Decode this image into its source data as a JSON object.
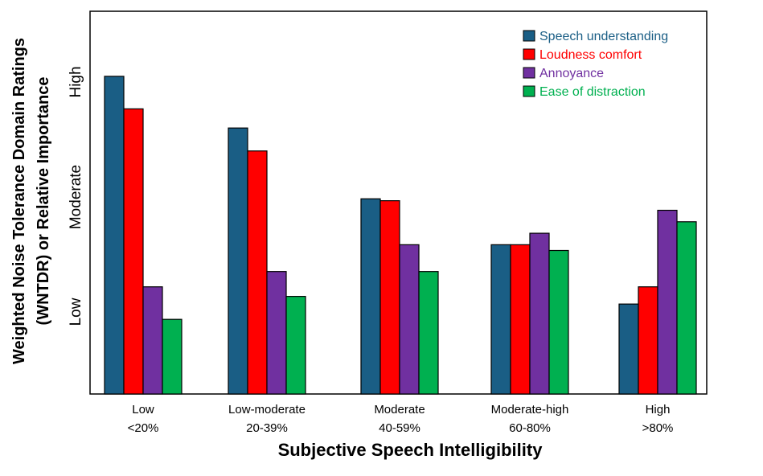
{
  "chart_data": {
    "type": "bar",
    "title": "",
    "xlabel": "Subjective Speech Intelligibility",
    "ylabel_line1": "Weighted Noise Tolerance Domain Ratings",
    "ylabel_line2": "(WNTDR) or  Relative Importance",
    "y_levels": [
      "Low",
      "Moderate",
      "High"
    ],
    "categories": [
      {
        "name": "Low",
        "range": "<20%"
      },
      {
        "name": "Low-moderate",
        "range": "20-39%"
      },
      {
        "name": "Moderate",
        "range": "40-59%"
      },
      {
        "name": "Moderate-high",
        "range": "60-80%"
      },
      {
        "name": "High",
        "range": ">80%"
      }
    ],
    "ylim": [
      0,
      100
    ],
    "series": [
      {
        "name": "Speech understanding",
        "color": "#1a5e85",
        "text_color": "#1a5e85",
        "values": [
          83,
          69.5,
          51,
          39,
          23.5
        ]
      },
      {
        "name": "Loudness comfort",
        "color": "#ff0000",
        "text_color": "#ff0000",
        "values": [
          74.5,
          63.5,
          50.5,
          39,
          28
        ]
      },
      {
        "name": "Annoyance",
        "color": "#7030a0",
        "text_color": "#7030a0",
        "values": [
          28,
          32,
          39,
          42,
          48
        ]
      },
      {
        "name": "Ease of distraction",
        "color": "#00b050",
        "text_color": "#00b050",
        "values": [
          19.5,
          25.5,
          32,
          37.5,
          45
        ]
      }
    ],
    "legend_position": "top-right",
    "grid": false
  }
}
